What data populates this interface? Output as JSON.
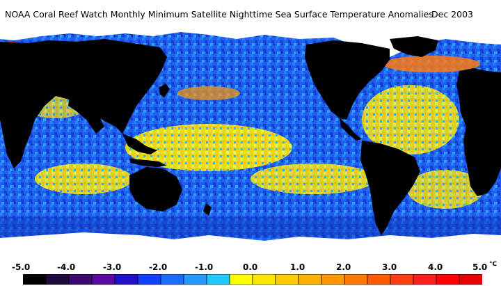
{
  "title": "NOAA Coral Reef Watch Monthly Minimum Satellite Nighttime Sea Surface Temperature Anomalies",
  "date": "Dec 2003",
  "legend": {
    "ticks": [
      "-5.0",
      "-4.0",
      "-3.0",
      "-2.0",
      "-1.0",
      "0.0",
      "1.0",
      "2.0",
      "3.0",
      "4.0",
      "5.0"
    ],
    "unit": "°C",
    "range": [
      -5.0,
      5.0
    ],
    "colors": [
      "#000000",
      "#1e0a3c",
      "#3a0a6e",
      "#5a0aa0",
      "#2010c8",
      "#1040ff",
      "#1a6cff",
      "#2898ff",
      "#20c8ff",
      "#ffff00",
      "#ffe600",
      "#ffcc00",
      "#ffb000",
      "#ff9600",
      "#ff7800",
      "#ff5a00",
      "#ff3c14",
      "#ff1e1e",
      "#ff0000",
      "#e60000"
    ]
  },
  "map_colors": {
    "ocean": "#1a55e6",
    "ocean_light": "#2a8cff",
    "warm": "#ffe000",
    "hot": "#ff6a00",
    "land": "#000000",
    "ice": "#ffffff"
  }
}
